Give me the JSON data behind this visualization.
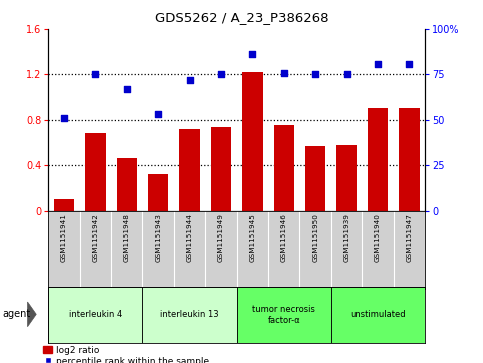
{
  "title": "GDS5262 / A_23_P386268",
  "samples": [
    "GSM1151941",
    "GSM1151942",
    "GSM1151948",
    "GSM1151943",
    "GSM1151944",
    "GSM1151949",
    "GSM1151945",
    "GSM1151946",
    "GSM1151950",
    "GSM1151939",
    "GSM1151940",
    "GSM1151947"
  ],
  "log2_ratio": [
    0.1,
    0.68,
    0.46,
    0.32,
    0.72,
    0.74,
    1.22,
    0.75,
    0.57,
    0.58,
    0.9,
    0.9
  ],
  "percentile_right": [
    51,
    75,
    67,
    53,
    72,
    75,
    86,
    76,
    75,
    75,
    81,
    81
  ],
  "bar_color": "#cc0000",
  "dot_color": "#0000cc",
  "ylim_left": [
    0,
    1.6
  ],
  "ylim_right": [
    0,
    100
  ],
  "yticks_left": [
    0.0,
    0.4,
    0.8,
    1.2,
    1.6
  ],
  "yticks_right": [
    0,
    25,
    50,
    75,
    100
  ],
  "ytick_labels_left": [
    "0",
    "0.4",
    "0.8",
    "1.2",
    "1.6"
  ],
  "ytick_labels_right": [
    "0",
    "25",
    "50",
    "75",
    "100%"
  ],
  "groups": [
    {
      "label": "interleukin 4",
      "start": 0,
      "end": 3,
      "color": "#ccffcc"
    },
    {
      "label": "interleukin 13",
      "start": 3,
      "end": 6,
      "color": "#ccffcc"
    },
    {
      "label": "tumor necrosis\nfactor-α",
      "start": 6,
      "end": 9,
      "color": "#66ff66"
    },
    {
      "label": "unstimulated",
      "start": 9,
      "end": 12,
      "color": "#66ff66"
    }
  ],
  "agent_label": "agent",
  "legend_bar_label": "log2 ratio",
  "legend_dot_label": "percentile rank within the sample",
  "background_color": "#ffffff",
  "plot_bg_color": "#ffffff",
  "xtick_bg_color": "#d0d0d0",
  "grid_lines": [
    0.4,
    0.8,
    1.2
  ]
}
